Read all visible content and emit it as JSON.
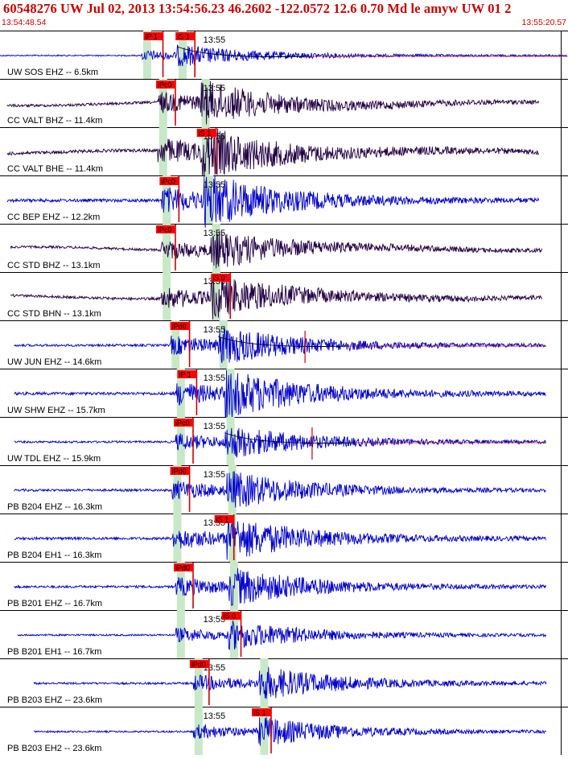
{
  "header": {
    "title": "60548276 UW Jul 02, 2013 13:54:56.23    46.2602 -122.0572 12.6 0.70 Md le amyw UW 01    2",
    "start_time": "13:54:48.54",
    "end_time": "13:55:20.57"
  },
  "colors": {
    "header_text": "#cc0000",
    "trace_default": "#0000cc",
    "trace_dark": "#220044",
    "pick_box": "#ff0000",
    "pick_line": "#cc0000",
    "p_band": "#c8e8c8",
    "synthetic_curve": "#000000",
    "residual_trace": "#cc0000"
  },
  "chart_data": {
    "type": "waveform",
    "time_axis": {
      "start": "13:54:48.54",
      "end": "13:55:20.57",
      "minute_marker": "13:55"
    },
    "traces": [
      {
        "label": "UW SOS EHZ -- 6.5km",
        "color": "blue",
        "picks": [
          {
            "label": "iP 1",
            "t": 8.1
          },
          {
            "label": "iS 1",
            "t": 9.9
          }
        ],
        "p_window": 8.3,
        "s_window": 10.3,
        "start": 0.0,
        "end": 32.0,
        "amp": 0.22,
        "minute_label": true,
        "residual": true
      },
      {
        "label": "CC VALT BHZ -- 11.4km",
        "color": "dark",
        "picks": [
          {
            "label": "iPc0",
            "t": 8.8
          }
        ],
        "p_window": 9.2,
        "s_window": 11.6,
        "start": 0.4,
        "end": 30.4,
        "amp": 0.45,
        "minute_label": true
      },
      {
        "label": "CC VALT BHE -- 11.4km",
        "color": "dark",
        "picks": [
          {
            "label": "iS 1",
            "t": 11.1
          }
        ],
        "p_window": 9.2,
        "s_window": 11.6,
        "start": 0.4,
        "end": 30.4,
        "amp": 0.55,
        "minute_label": true
      },
      {
        "label": "CC BEP EHZ -- 12.2km",
        "color": "blue",
        "picks": [
          {
            "label": "iPc0",
            "t": 9.0
          }
        ],
        "p_window": 9.4,
        "s_window": 11.8,
        "start": 0.4,
        "end": 30.4,
        "amp": 0.55,
        "minute_label": true
      },
      {
        "label": "CC STD BHZ -- 13.1km",
        "color": "dark",
        "picks": [
          {
            "label": "iPc0",
            "t": 8.8
          }
        ],
        "p_window": 9.4,
        "s_window": 12.2,
        "start": 0.6,
        "end": 30.6,
        "amp": 0.4,
        "minute_label": true
      },
      {
        "label": "CC STD BHN -- 13.1km",
        "color": "dark",
        "picks": [
          {
            "label": "iS 0",
            "t": 11.9
          }
        ],
        "p_window": 9.4,
        "s_window": 12.2,
        "start": 0.6,
        "end": 30.6,
        "amp": 0.45,
        "minute_label": true
      },
      {
        "label": "UW JUN EHZ -- 14.6km",
        "color": "blue",
        "picks": [
          {
            "label": "iPd0",
            "t": 9.6
          }
        ],
        "p_window": 9.9,
        "s_window": 12.6,
        "start": 0.8,
        "end": 30.8,
        "amp": 0.4,
        "minute_label": true,
        "residual": true
      },
      {
        "label": "UW SHW EHZ -- 15.7km",
        "color": "blue",
        "picks": [
          {
            "label": "iP 1",
            "t": 10.0
          }
        ],
        "p_window": 10.2,
        "s_window": 13.0,
        "start": 0.8,
        "end": 30.8,
        "amp": 0.5,
        "minute_label": true
      },
      {
        "label": "UW TDL EHZ -- 15.9km",
        "color": "blue",
        "picks": [
          {
            "label": "iPc0",
            "t": 9.8
          }
        ],
        "p_window": 10.2,
        "s_window": 13.0,
        "start": 0.8,
        "end": 30.8,
        "amp": 0.35,
        "minute_label": true,
        "residual": true
      },
      {
        "label": "PB B204 EHZ -- 16.3km",
        "color": "blue",
        "picks": [
          {
            "label": "iPd0",
            "t": 9.6
          }
        ],
        "p_window": 10.0,
        "s_window": 13.1,
        "start": 0.8,
        "end": 30.8,
        "amp": 0.4,
        "minute_label": true
      },
      {
        "label": "PB B204 EH1 -- 16.3km",
        "color": "blue",
        "picks": [
          {
            "label": "iS 1",
            "t": 12.1
          }
        ],
        "p_window": 10.0,
        "s_window": 13.1,
        "start": 0.8,
        "end": 30.8,
        "amp": 0.45,
        "minute_label": true
      },
      {
        "label": "PB B201 EHZ -- 16.7km",
        "color": "blue",
        "picks": [
          {
            "label": "iPd0",
            "t": 9.8
          }
        ],
        "p_window": 10.2,
        "s_window": 13.2,
        "start": 0.8,
        "end": 30.8,
        "amp": 0.4,
        "minute_label": false
      },
      {
        "label": "PB B201 EH1 -- 16.7km",
        "color": "blue",
        "picks": [
          {
            "label": "iS 0",
            "t": 12.5
          }
        ],
        "p_window": 10.2,
        "s_window": 13.2,
        "start": 1.0,
        "end": 30.8,
        "amp": 0.3,
        "minute_label": true
      },
      {
        "label": "PB B203 EHZ -- 23.6km",
        "color": "blue",
        "picks": [
          {
            "label": "iPd0",
            "t": 10.7
          }
        ],
        "p_window": 11.2,
        "s_window": 14.9,
        "start": 1.9,
        "end": 30.8,
        "amp": 0.35,
        "minute_label": true
      },
      {
        "label": "PB B203 EH2 -- 23.6km",
        "color": "blue",
        "picks": [
          {
            "label": "iS 1",
            "t": 14.2
          }
        ],
        "p_window": 11.2,
        "s_window": 14.9,
        "start": 1.9,
        "end": 30.8,
        "amp": 0.3,
        "minute_label": true
      }
    ]
  }
}
